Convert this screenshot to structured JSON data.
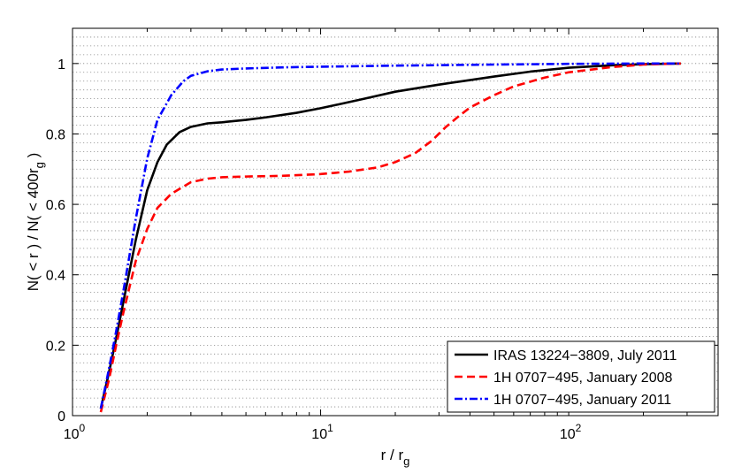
{
  "chart_data": {
    "type": "line",
    "x_scale": "log",
    "xlim": [
      1,
      400
    ],
    "ylim": [
      0,
      1.1
    ],
    "grid": "dotted horizontal",
    "legend_placement": "bottom-right",
    "xlabel": {
      "main": "r / r",
      "sub": "g"
    },
    "ylabel": {
      "main": "N( < r ) / N( < 400r",
      "sub": "g",
      "tail": " )"
    },
    "x_ticks": [
      {
        "value": 1,
        "base": "10",
        "exp": "0"
      },
      {
        "value": 10,
        "base": "10",
        "exp": "1"
      },
      {
        "value": 100,
        "base": "10",
        "exp": "2"
      }
    ],
    "y_ticks": [
      {
        "value": 0,
        "label": "0"
      },
      {
        "value": 0.2,
        "label": "0.2"
      },
      {
        "value": 0.4,
        "label": "0.4"
      },
      {
        "value": 0.6,
        "label": "0.6"
      },
      {
        "value": 0.8,
        "label": "0.8"
      },
      {
        "value": 1.0,
        "label": "1"
      }
    ],
    "series": [
      {
        "name": "IRAS 13224−3809, July 2011",
        "color": "#000000",
        "dash": "solid",
        "x": [
          1.3,
          1.4,
          1.5,
          1.6,
          1.8,
          2.0,
          2.2,
          2.4,
          2.7,
          3.0,
          3.5,
          4.0,
          5.0,
          6.0,
          8.0,
          10,
          12,
          15,
          20,
          30,
          40,
          50,
          70,
          100,
          150,
          200,
          283
        ],
        "y": [
          0.02,
          0.12,
          0.22,
          0.32,
          0.5,
          0.64,
          0.72,
          0.77,
          0.805,
          0.82,
          0.83,
          0.833,
          0.84,
          0.847,
          0.86,
          0.873,
          0.885,
          0.9,
          0.92,
          0.94,
          0.953,
          0.963,
          0.977,
          0.988,
          0.995,
          0.998,
          1.0
        ]
      },
      {
        "name": "1H 0707−495, January 2008",
        "color": "#ff0000",
        "dash": "dashed",
        "x": [
          1.3,
          1.4,
          1.5,
          1.6,
          1.8,
          2.0,
          2.2,
          2.5,
          3.0,
          3.5,
          4.0,
          5.0,
          7.0,
          10,
          13,
          17,
          20,
          24,
          28,
          32,
          36,
          40,
          50,
          60,
          80,
          100,
          150,
          200,
          283
        ],
        "y": [
          0.01,
          0.1,
          0.2,
          0.29,
          0.44,
          0.53,
          0.59,
          0.63,
          0.663,
          0.673,
          0.677,
          0.679,
          0.681,
          0.686,
          0.693,
          0.705,
          0.72,
          0.745,
          0.78,
          0.82,
          0.85,
          0.875,
          0.91,
          0.935,
          0.96,
          0.975,
          0.99,
          0.997,
          1.0
        ]
      },
      {
        "name": "1H 0707−495, January 2011",
        "color": "#0000ff",
        "dash": "dash-dot",
        "x": [
          1.3,
          1.4,
          1.5,
          1.6,
          1.8,
          2.0,
          2.2,
          2.5,
          2.8,
          3.0,
          3.5,
          4.0,
          5.0,
          7.0,
          10,
          20,
          50,
          100,
          200,
          283
        ],
        "y": [
          0.02,
          0.13,
          0.24,
          0.35,
          0.56,
          0.73,
          0.84,
          0.91,
          0.95,
          0.965,
          0.978,
          0.983,
          0.986,
          0.989,
          0.991,
          0.994,
          0.997,
          0.999,
          1.0,
          1.0
        ]
      }
    ]
  }
}
